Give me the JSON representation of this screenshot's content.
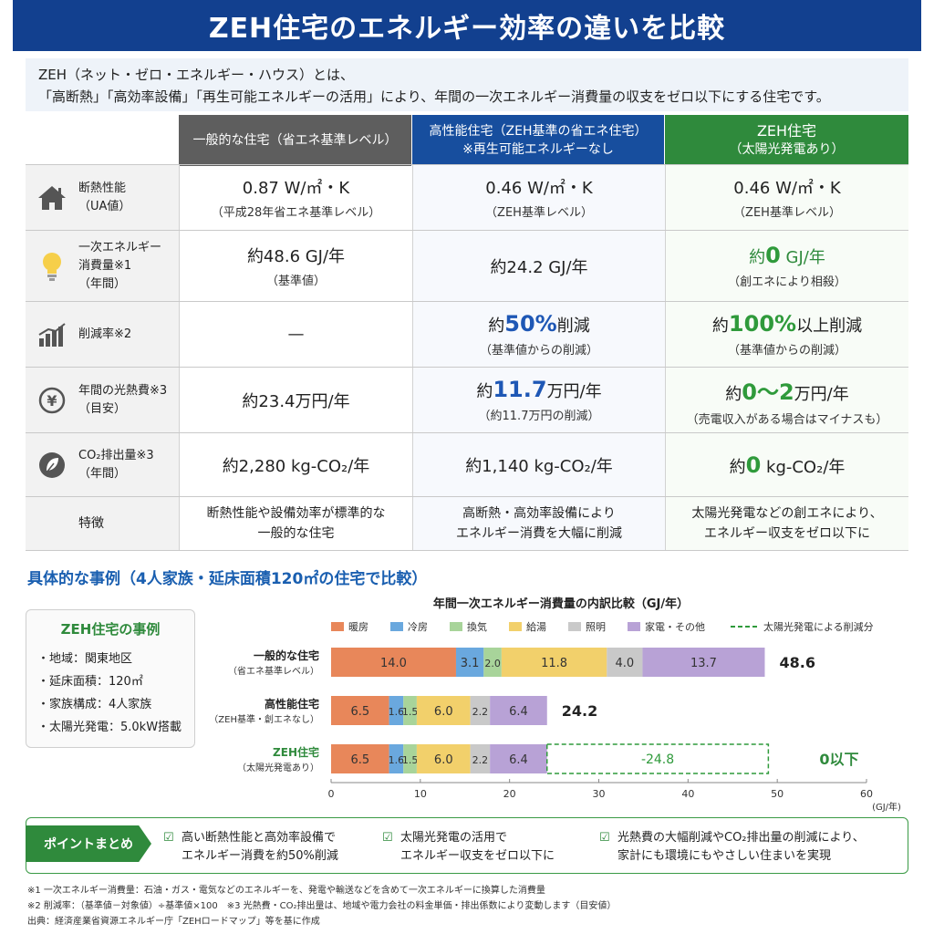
{
  "title": "ZEH住宅のエネルギー効率の違いを比較",
  "intro": {
    "line1": "ZEH（ネット・ゼロ・エネルギー・ハウス）とは、",
    "line2": "「高断熱」「高効率設備」「再生可能エネルギーの活用」により、年間の一次エネルギー消費量の収支をゼロ以下にする住宅です。"
  },
  "columns": {
    "c1": {
      "l1": "一般的な住宅（省エネ基準レベル）"
    },
    "c2": {
      "l1": "高性能住宅（ZEH基準の省エネ住宅）",
      "l2": "※再生可能エネルギーなし"
    },
    "c3": {
      "l1": "ZEH住宅",
      "l2": "（太陽光発電あり）"
    }
  },
  "rows": {
    "insulation": {
      "label1": "断熱性能",
      "label2": "（UA値）",
      "c1_main": "0.87 W/㎡・K",
      "c1_sub": "（平成28年省エネ基準レベル）",
      "c2_main": "0.46 W/㎡・K",
      "c2_sub": "（ZEH基準レベル）",
      "c3_main": "0.46 W/㎡・K",
      "c3_sub": "（ZEH基準レベル）"
    },
    "energy": {
      "label1": "一次エネルギー",
      "label2": "消費量※1",
      "label3": "（年間）",
      "c1_main": "約48.6 GJ/年",
      "c1_sub": "（基準値）",
      "c2_main": "約24.2 GJ/年",
      "c3_pre": "約",
      "c3_big": "0",
      "c3_post": " GJ/年",
      "c3_sub": "（創エネにより相殺）"
    },
    "reduction": {
      "label1": "削減率※2",
      "c1_main": "—",
      "c2_pre": "約",
      "c2_big": "50%",
      "c2_post": "削減",
      "c2_sub": "（基準値からの削減）",
      "c3_pre": "約",
      "c3_big": "100%",
      "c3_post": "以上削減",
      "c3_sub": "（基準値からの削減）"
    },
    "cost": {
      "label1": "年間の光熱費※3",
      "label2": "（目安）",
      "c1_main": "約23.4万円/年",
      "c2_pre": "約",
      "c2_big": "11.7",
      "c2_post": "万円/年",
      "c2_sub": "（約11.7万円の削減）",
      "c3_pre": "約",
      "c3_big": "0〜2",
      "c3_post": "万円/年",
      "c3_sub": "（売電収入がある場合はマイナスも）"
    },
    "co2": {
      "label1": "CO₂排出量※3",
      "label2": "（年間）",
      "c1_main": "約2,280 kg-CO₂/年",
      "c2_main": "約1,140 kg-CO₂/年",
      "c3_pre": "約",
      "c3_big": "0",
      "c3_post": " kg-CO₂/年"
    },
    "feature": {
      "label1": "特徴",
      "c1_l1": "断熱性能や設備効率が標準的な",
      "c1_l2": "一般的な住宅",
      "c2_l1": "高断熱・高効率設備により",
      "c2_l2": "エネルギー消費を大幅に削減",
      "c3_l1": "太陽光発電などの創エネにより、",
      "c3_l2": "エネルギー収支をゼロ以下に"
    }
  },
  "section_title": "具体的な事例（4人家族・延床面積120㎡の住宅で比較）",
  "case": {
    "title": "ZEH住宅の事例",
    "items": [
      "・地域：関東地区",
      "・延床面積：120㎡",
      "・家族構成：4人家族",
      "・太陽光発電：5.0kW搭載"
    ]
  },
  "chart_data": {
    "type": "bar",
    "orientation": "horizontal",
    "stacked": true,
    "title": "年間一次エネルギー消費量の内訳比較（GJ/年）",
    "xlabel": "(GJ/年)",
    "xlim": [
      0,
      60
    ],
    "xticks": [
      0,
      10,
      20,
      30,
      40,
      50,
      60
    ],
    "legend_position": "top",
    "categories": [
      {
        "name": "一般的な住宅",
        "sub": "（省エネ基準レベル）",
        "total": "48.6"
      },
      {
        "name": "高性能住宅",
        "sub": "（ZEH基準・創エネなし）",
        "total": "24.2"
      },
      {
        "name": "ZEH住宅",
        "sub": "（太陽光発電あり）",
        "total": "0以下"
      }
    ],
    "series": [
      {
        "name": "暖房",
        "color": "#e8875a",
        "values": [
          14.0,
          6.5,
          6.5
        ]
      },
      {
        "name": "冷房",
        "color": "#6aa8de",
        "values": [
          3.1,
          1.6,
          1.6
        ]
      },
      {
        "name": "換気",
        "color": "#a8d49a",
        "values": [
          2.0,
          1.5,
          1.5
        ]
      },
      {
        "name": "給湯",
        "color": "#f2d06b",
        "values": [
          11.8,
          6.0,
          6.0
        ]
      },
      {
        "name": "照明",
        "color": "#c9c9c9",
        "values": [
          4.0,
          2.2,
          2.2
        ]
      },
      {
        "name": "家電・その他",
        "color": "#b8a2d6",
        "values": [
          13.7,
          6.4,
          6.4
        ]
      }
    ],
    "offset": {
      "name": "太陽光発電による削減分",
      "value": -24.8,
      "label": "-24.8",
      "color": "#2f9a3b"
    }
  },
  "points": {
    "tag": "ポイントまとめ",
    "p1_l1": "高い断熱性能と高効率設備で",
    "p1_l2": "エネルギー消費を約50%削減",
    "p2_l1": "太陽光発電の活用で",
    "p2_l2": "エネルギー収支をゼロ以下に",
    "p3_l1": "光熱費の大幅削減やCO₂排出量の削減により、",
    "p3_l2": "家計にも環境にもやさしい住まいを実現",
    "check": "☑"
  },
  "notes": {
    "n1": "※1 一次エネルギー消費量：石油・ガス・電気などのエネルギーを、発電や輸送などを含めて一次エネルギーに換算した消費量",
    "n2": "※2 削減率：（基準値－対象値）÷基準値×100　※3 光熱費・CO₂排出量は、地域や電力会社の料金単価・排出係数により変動します（目安値）",
    "n3": "出典：経済産業省資源エネルギー庁「ZEHロードマップ」等を基に作成"
  }
}
